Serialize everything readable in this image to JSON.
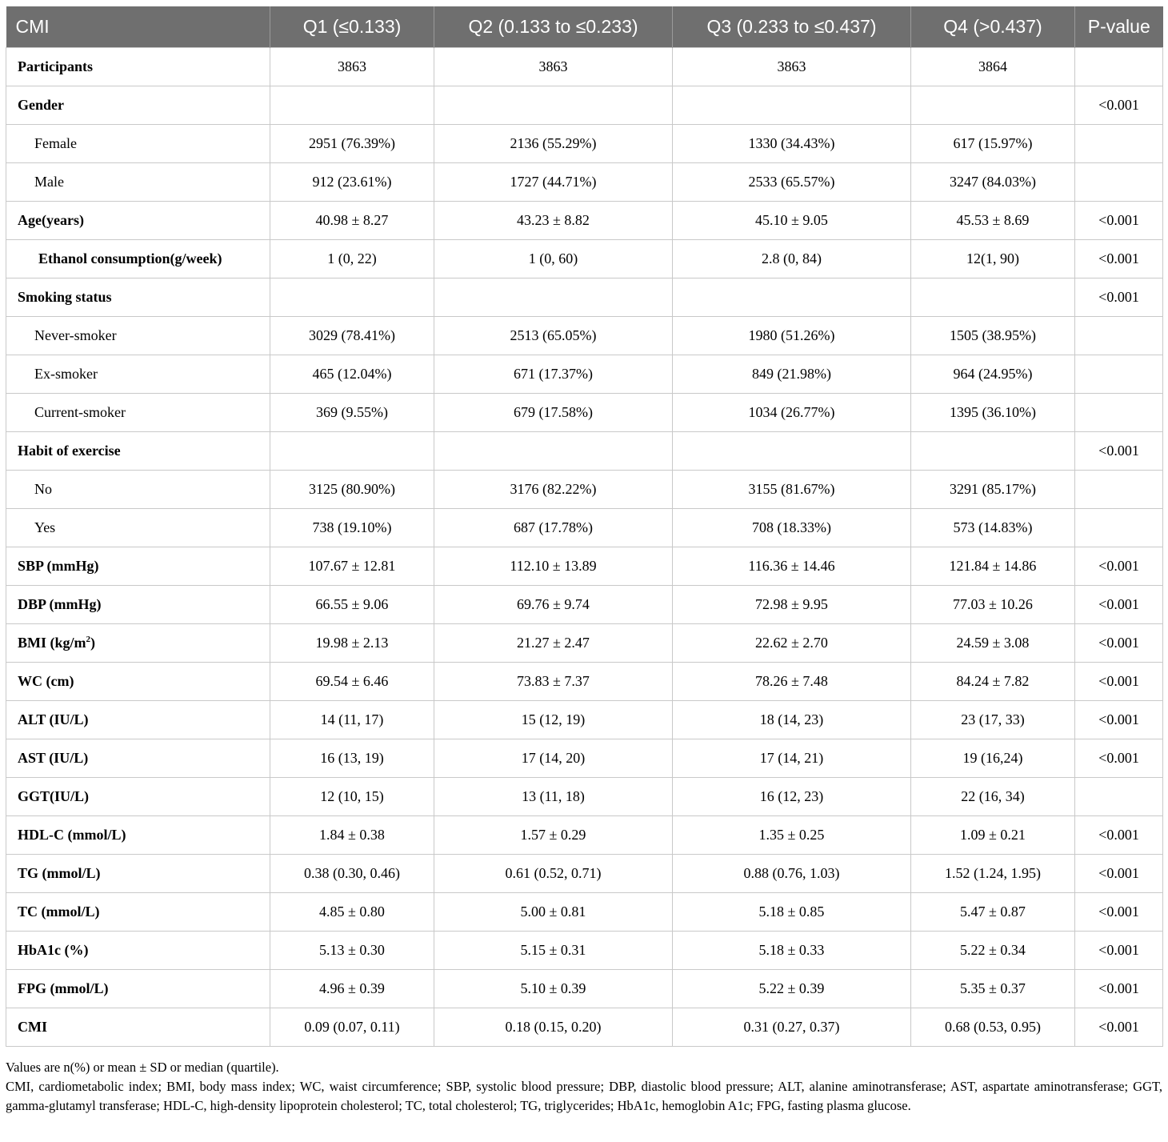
{
  "table": {
    "headers": [
      "CMI",
      "Q1 (≤0.133)",
      "Q2 (0.133 to ≤0.233)",
      "Q3 (0.233 to ≤0.437)",
      "Q4 (>0.437)",
      "P-value"
    ],
    "rows": [
      {
        "label": "Participants",
        "style": "bold",
        "cells": [
          "3863",
          "3863",
          "3863",
          "3864",
          ""
        ]
      },
      {
        "label": "Gender",
        "style": "bold",
        "cells": [
          "",
          "",
          "",
          "",
          "<0.001"
        ]
      },
      {
        "label": "Female",
        "style": "sub",
        "cells": [
          "2951 (76.39%)",
          "2136 (55.29%)",
          "1330 (34.43%)",
          "617 (15.97%)",
          ""
        ]
      },
      {
        "label": "Male",
        "style": "sub",
        "cells": [
          "912 (23.61%)",
          "1727 (44.71%)",
          "2533 (65.57%)",
          "3247 (84.03%)",
          ""
        ]
      },
      {
        "label": "Age(years)",
        "style": "bold",
        "cells": [
          "40.98 ± 8.27",
          "43.23 ± 8.82",
          "45.10 ± 9.05",
          "45.53 ± 8.69",
          "<0.001"
        ]
      },
      {
        "label": "Ethanol consumption(g/week)",
        "style": "subbold",
        "cells": [
          "1 (0, 22)",
          "1 (0, 60)",
          "2.8 (0, 84)",
          "12(1, 90)",
          "<0.001"
        ]
      },
      {
        "label": "Smoking status",
        "style": "bold",
        "cells": [
          "",
          "",
          "",
          "",
          "<0.001"
        ]
      },
      {
        "label": "Never-smoker",
        "style": "sub",
        "cells": [
          "3029 (78.41%)",
          "2513 (65.05%)",
          "1980 (51.26%)",
          "1505 (38.95%)",
          ""
        ]
      },
      {
        "label": "Ex-smoker",
        "style": "sub",
        "cells": [
          "465 (12.04%)",
          "671 (17.37%)",
          "849 (21.98%)",
          "964 (24.95%)",
          ""
        ]
      },
      {
        "label": "Current-smoker",
        "style": "sub",
        "cells": [
          "369 (9.55%)",
          "679 (17.58%)",
          "1034 (26.77%)",
          "1395 (36.10%)",
          ""
        ]
      },
      {
        "label": "Habit of exercise",
        "style": "bold",
        "cells": [
          "",
          "",
          "",
          "",
          "<0.001"
        ]
      },
      {
        "label": "No",
        "style": "sub",
        "cells": [
          "3125 (80.90%)",
          "3176 (82.22%)",
          "3155 (81.67%)",
          "3291 (85.17%)",
          ""
        ]
      },
      {
        "label": "Yes",
        "style": "sub",
        "cells": [
          "738 (19.10%)",
          "687 (17.78%)",
          "708 (18.33%)",
          "573 (14.83%)",
          ""
        ]
      },
      {
        "label": "SBP (mmHg)",
        "style": "bold",
        "cells": [
          "107.67 ± 12.81",
          "112.10 ± 13.89",
          "116.36 ± 14.46",
          "121.84 ± 14.86",
          "<0.001"
        ]
      },
      {
        "label": "DBP (mmHg)",
        "style": "bold",
        "cells": [
          "66.55 ± 9.06",
          "69.76 ± 9.74",
          "72.98 ± 9.95",
          "77.03 ± 10.26",
          "<0.001"
        ]
      },
      {
        "label": "BMI (kg/m",
        "sup": "2",
        "label_end": ")",
        "style": "bold",
        "cells": [
          "19.98 ± 2.13",
          "21.27 ± 2.47",
          "22.62 ± 2.70",
          "24.59 ± 3.08",
          "<0.001"
        ]
      },
      {
        "label": "WC (cm)",
        "style": "bold",
        "cells": [
          "69.54 ± 6.46",
          "73.83 ± 7.37",
          "78.26 ± 7.48",
          "84.24 ± 7.82",
          "<0.001"
        ]
      },
      {
        "label": "ALT (IU/L)",
        "style": "bold",
        "cells": [
          "14 (11, 17)",
          "15 (12, 19)",
          "18 (14, 23)",
          "23 (17, 33)",
          "<0.001"
        ]
      },
      {
        "label": "AST (IU/L)",
        "style": "bold",
        "cells": [
          "16 (13, 19)",
          "17 (14, 20)",
          "17 (14, 21)",
          "19 (16,24)",
          "<0.001"
        ]
      },
      {
        "label": "GGT(IU/L)",
        "style": "bold",
        "cells": [
          "12 (10, 15)",
          "13 (11, 18)",
          "16 (12, 23)",
          "22 (16, 34)",
          ""
        ]
      },
      {
        "label": "HDL-C (mmol/L)",
        "style": "bold",
        "cells": [
          "1.84 ± 0.38",
          "1.57 ± 0.29",
          "1.35 ± 0.25",
          "1.09 ± 0.21",
          "<0.001"
        ]
      },
      {
        "label": "TG (mmol/L)",
        "style": "bold",
        "cells": [
          "0.38 (0.30, 0.46)",
          "0.61 (0.52, 0.71)",
          "0.88 (0.76, 1.03)",
          "1.52 (1.24, 1.95)",
          "<0.001"
        ]
      },
      {
        "label": "TC (mmol/L)",
        "style": "bold",
        "cells": [
          "4.85 ± 0.80",
          "5.00 ± 0.81",
          "5.18 ± 0.85",
          "5.47 ± 0.87",
          "<0.001"
        ]
      },
      {
        "label": "HbA1c (%)",
        "style": "bold",
        "cells": [
          "5.13 ± 0.30",
          "5.15 ± 0.31",
          "5.18 ± 0.33",
          "5.22 ± 0.34",
          "<0.001"
        ]
      },
      {
        "label": "FPG (mmol/L)",
        "style": "bold",
        "cells": [
          "4.96 ± 0.39",
          "5.10 ± 0.39",
          "5.22 ± 0.39",
          "5.35 ± 0.37",
          "<0.001"
        ]
      },
      {
        "label": "CMI",
        "style": "bold",
        "cells": [
          "0.09 (0.07, 0.11)",
          "0.18 (0.15, 0.20)",
          "0.31 (0.27, 0.37)",
          "0.68 (0.53, 0.95)",
          "<0.001"
        ]
      }
    ]
  },
  "notes": {
    "line1": "Values are n(%) or mean ± SD or median (quartile).",
    "line2": "CMI, cardiometabolic index; BMI, body mass index; WC, waist circumference; SBP, systolic blood pressure; DBP, diastolic blood pressure; ALT, alanine aminotransferase; AST, aspartate aminotransferase; GGT, gamma-glutamyl transferase; HDL-C, high-density lipoprotein cholesterol; TC, total cholesterol; TG, triglycerides; HbA1c, hemoglobin A1c; FPG, fasting plasma glucose."
  }
}
